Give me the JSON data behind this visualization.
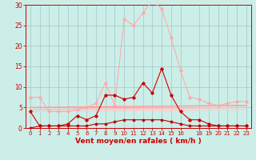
{
  "background_color": "#cceee8",
  "grid_color": "#aacccc",
  "xlabel": "Vent moyen/en rafales ( km/h )",
  "xlabel_color": "#cc0000",
  "xlim": [
    -0.5,
    23.5
  ],
  "ylim": [
    0,
    30
  ],
  "yticks": [
    0,
    5,
    10,
    15,
    20,
    25,
    30
  ],
  "xticks": [
    0,
    1,
    2,
    3,
    4,
    5,
    6,
    7,
    8,
    9,
    10,
    11,
    12,
    13,
    14,
    15,
    16,
    18,
    19,
    20,
    21,
    22,
    23
  ],
  "xtick_labels": [
    "0",
    "1",
    "2",
    "3",
    "4",
    "5",
    "6",
    "7",
    "8",
    "9",
    "10",
    "11",
    "12",
    "13",
    "14",
    "15",
    "16",
    "18",
    "19",
    "20",
    "21",
    "22",
    "23"
  ],
  "line_light_pink": {
    "x": [
      0,
      1,
      2,
      3,
      4,
      5,
      6,
      7,
      8,
      9,
      10,
      11,
      12,
      13,
      14,
      15,
      16,
      17,
      18,
      19,
      20,
      21,
      22,
      23
    ],
    "y": [
      7.5,
      7.5,
      4.0,
      4.0,
      4.0,
      4.5,
      5.0,
      6.0,
      11.0,
      5.5,
      26.5,
      25.0,
      28.0,
      31.0,
      29.0,
      22.0,
      14.0,
      7.5,
      7.0,
      6.0,
      5.5,
      6.0,
      6.5,
      6.5
    ],
    "color": "#ffaaaa",
    "lw": 0.8,
    "marker": "D",
    "ms": 1.8
  },
  "line_dark_red": {
    "x": [
      0,
      1,
      2,
      3,
      4,
      5,
      6,
      7,
      8,
      9,
      10,
      11,
      12,
      13,
      14,
      15,
      16,
      17,
      18,
      19,
      20,
      21,
      22,
      23
    ],
    "y": [
      4.0,
      0.5,
      0.5,
      0.5,
      1.0,
      3.0,
      2.0,
      3.0,
      8.0,
      8.0,
      7.0,
      7.5,
      11.0,
      8.5,
      14.5,
      8.0,
      4.0,
      2.0,
      2.0,
      1.0,
      0.5,
      0.5,
      0.5,
      0.5
    ],
    "color": "#cc0000",
    "lw": 0.8,
    "marker": "D",
    "ms": 1.8
  },
  "line_flat1": {
    "x": [
      0,
      23
    ],
    "y": [
      5.0,
      5.5
    ],
    "color": "#ff9999",
    "lw": 1.0,
    "marker": null
  },
  "line_flat2": {
    "x": [
      0,
      23
    ],
    "y": [
      4.5,
      5.0
    ],
    "color": "#ffbbbb",
    "lw": 1.0,
    "marker": null
  },
  "line_flat3": {
    "x": [
      0,
      23
    ],
    "y": [
      4.0,
      4.5
    ],
    "color": "#ffcccc",
    "lw": 1.0,
    "marker": null
  },
  "line_bottom": {
    "x": [
      0,
      1,
      2,
      3,
      4,
      5,
      6,
      7,
      8,
      9,
      10,
      11,
      12,
      13,
      14,
      15,
      16,
      17,
      18,
      19,
      20,
      21,
      22,
      23
    ],
    "y": [
      0.0,
      0.5,
      0.5,
      0.5,
      0.5,
      0.5,
      0.5,
      1.0,
      1.0,
      1.5,
      2.0,
      2.0,
      2.0,
      2.0,
      2.0,
      1.5,
      1.0,
      0.5,
      0.5,
      0.5,
      0.5,
      0.5,
      0.5,
      0.5
    ],
    "color": "#bb0000",
    "lw": 0.8,
    "marker": "D",
    "ms": 1.5
  }
}
